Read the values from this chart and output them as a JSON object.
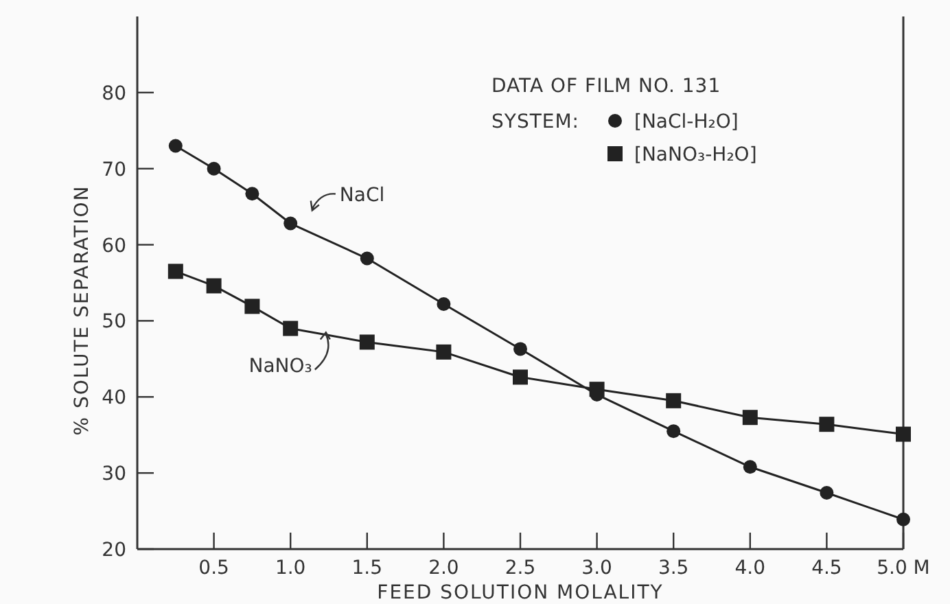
{
  "chart_data": {
    "type": "line",
    "xlabel": "FEED SOLUTION MOLALITY",
    "ylabel": "% SOLUTE SEPARATION",
    "legend_title": "DATA OF FILM NO. 131",
    "legend": "top right",
    "line_style": "solid",
    "grid": false,
    "xlim": [
      0,
      5
    ],
    "xticks": [
      0.5,
      {
        "value": 1,
        "label": "1.0"
      },
      1.5,
      {
        "value": 2,
        "label": "2.0"
      },
      2.5,
      {
        "value": 3,
        "label": "3.0"
      },
      3.5,
      {
        "value": 4,
        "label": "4.0"
      },
      4.5,
      {
        "value": 5,
        "label": "5.0 M"
      }
    ],
    "ylim": [
      20,
      90
    ],
    "yticks": [
      20,
      30,
      40,
      50,
      60,
      70,
      80
    ],
    "x": [
      0.25,
      0.5,
      0.75,
      1,
      1.5,
      2,
      2.5,
      3,
      3.5,
      4,
      4.5,
      5
    ],
    "series": [
      {
        "name": "[NaCl-H₂O]",
        "color": "#222222",
        "marker": "circle",
        "values": [
          73,
          70,
          66.7,
          62.8,
          58.2,
          52.2,
          46.3,
          40.3,
          35.5,
          30.8,
          27.4,
          23.9
        ]
      },
      {
        "name": "[NaNO₃-H₂O]",
        "color": "#222222",
        "marker": "square",
        "values": [
          56.5,
          54.6,
          51.9,
          49,
          47.2,
          45.9,
          42.6,
          41,
          39.5,
          37.3,
          36.4,
          35.1
        ]
      }
    ],
    "annotations": [
      "SYSTEM:",
      "NaCl",
      "NaNO₃"
    ]
  }
}
